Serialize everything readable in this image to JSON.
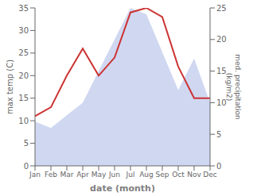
{
  "chart_data": {
    "type": "line",
    "xlabel": "date (month)",
    "ylabel": "max temp (C)",
    "y2label": "med. precipitation\n(kg/m2)",
    "categories": [
      "Jan",
      "Feb",
      "Mar",
      "Apr",
      "May",
      "Jun",
      "Jul",
      "Aug",
      "Sep",
      "Oct",
      "Nov",
      "Dec"
    ],
    "series": [
      {
        "type": "area",
        "color": "#b0bce8",
        "axis": "y2",
        "values": [
          7,
          6,
          8,
          10,
          15,
          20,
          25,
          24,
          18,
          12,
          17,
          10
        ]
      },
      {
        "type": "line",
        "color": "#cc3333",
        "axis": "y",
        "values": [
          11,
          13,
          20,
          26,
          20,
          24,
          34,
          35,
          33,
          22,
          15,
          15
        ]
      }
    ],
    "ylim": [
      0,
      35
    ],
    "yticks": [
      0,
      5,
      10,
      15,
      20,
      25,
      30,
      35
    ],
    "y2lim": [
      0,
      25
    ],
    "y2ticks": [
      0,
      5,
      10,
      15,
      20,
      25
    ]
  }
}
